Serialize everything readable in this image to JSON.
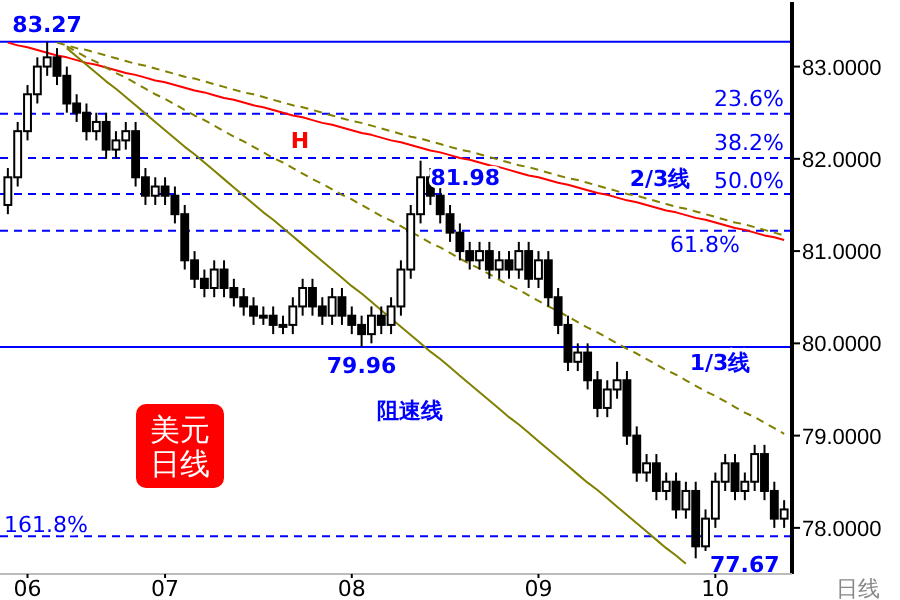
{
  "chart_data": {
    "type": "candlestick",
    "title": "美元日线",
    "xlabel": "日线",
    "categories": [
      null,
      null,
      "06",
      null,
      null,
      null,
      null,
      null,
      null,
      null,
      null,
      null,
      null,
      null,
      null,
      null,
      "07",
      null,
      null,
      null,
      null,
      null,
      null,
      null,
      null,
      null,
      null,
      null,
      null,
      null,
      null,
      null,
      null,
      null,
      null,
      "08",
      null,
      null,
      null,
      null,
      null,
      null,
      null,
      null,
      null,
      null,
      null,
      null,
      null,
      null,
      null,
      null,
      null,
      null,
      "09",
      null,
      null,
      null,
      null,
      null,
      null,
      null,
      null,
      null,
      null,
      null,
      null,
      null,
      null,
      null,
      null,
      null,
      "10",
      null,
      null,
      null,
      null,
      null,
      null,
      null
    ],
    "ohlc": [
      [
        81.5,
        81.9,
        81.4,
        81.8
      ],
      [
        81.8,
        82.4,
        81.7,
        82.3
      ],
      [
        82.3,
        82.8,
        82.2,
        82.7
      ],
      [
        82.7,
        83.1,
        82.6,
        83.0
      ],
      [
        83.0,
        83.27,
        82.9,
        83.1
      ],
      [
        83.1,
        83.2,
        82.8,
        82.9
      ],
      [
        82.9,
        83.0,
        82.5,
        82.6
      ],
      [
        82.6,
        82.7,
        82.4,
        82.5
      ],
      [
        82.5,
        82.6,
        82.2,
        82.3
      ],
      [
        82.3,
        82.5,
        82.2,
        82.4
      ],
      [
        82.4,
        82.5,
        82.0,
        82.1
      ],
      [
        82.1,
        82.3,
        82.0,
        82.2
      ],
      [
        82.2,
        82.4,
        82.1,
        82.3
      ],
      [
        82.3,
        82.4,
        81.7,
        81.8
      ],
      [
        81.8,
        81.9,
        81.5,
        81.6
      ],
      [
        81.6,
        81.8,
        81.5,
        81.7
      ],
      [
        81.7,
        81.8,
        81.5,
        81.6
      ],
      [
        81.6,
        81.7,
        81.3,
        81.4
      ],
      [
        81.4,
        81.5,
        80.8,
        80.9
      ],
      [
        80.9,
        81.0,
        80.6,
        80.7
      ],
      [
        80.7,
        80.8,
        80.5,
        80.6
      ],
      [
        80.6,
        80.9,
        80.5,
        80.8
      ],
      [
        80.8,
        80.9,
        80.5,
        80.6
      ],
      [
        80.6,
        80.7,
        80.4,
        80.5
      ],
      [
        80.5,
        80.6,
        80.3,
        80.4
      ],
      [
        80.4,
        80.5,
        80.2,
        80.3
      ],
      [
        80.3,
        80.4,
        80.2,
        80.3
      ],
      [
        80.3,
        80.4,
        80.1,
        80.2
      ],
      [
        80.2,
        80.3,
        80.1,
        80.2
      ],
      [
        80.2,
        80.5,
        80.1,
        80.4
      ],
      [
        80.4,
        80.7,
        80.3,
        80.6
      ],
      [
        80.6,
        80.7,
        80.3,
        80.4
      ],
      [
        80.4,
        80.5,
        80.2,
        80.3
      ],
      [
        80.3,
        80.6,
        80.2,
        80.5
      ],
      [
        80.5,
        80.6,
        80.2,
        80.3
      ],
      [
        80.3,
        80.4,
        80.1,
        80.2
      ],
      [
        80.2,
        80.3,
        79.96,
        80.1
      ],
      [
        80.1,
        80.4,
        80.0,
        80.3
      ],
      [
        80.3,
        80.4,
        80.1,
        80.2
      ],
      [
        80.2,
        80.5,
        80.1,
        80.4
      ],
      [
        80.4,
        80.9,
        80.3,
        80.8
      ],
      [
        80.8,
        81.5,
        80.7,
        81.4
      ],
      [
        81.4,
        81.98,
        81.3,
        81.8
      ],
      [
        81.8,
        81.9,
        81.5,
        81.6
      ],
      [
        81.6,
        81.7,
        81.3,
        81.4
      ],
      [
        81.4,
        81.5,
        81.1,
        81.2
      ],
      [
        81.2,
        81.3,
        80.9,
        81.0
      ],
      [
        81.0,
        81.1,
        80.8,
        80.9
      ],
      [
        80.9,
        81.1,
        80.8,
        81.0
      ],
      [
        81.0,
        81.1,
        80.7,
        80.8
      ],
      [
        80.8,
        81.0,
        80.7,
        80.9
      ],
      [
        80.9,
        81.0,
        80.7,
        80.8
      ],
      [
        80.8,
        81.1,
        80.7,
        81.0
      ],
      [
        81.0,
        81.1,
        80.6,
        80.7
      ],
      [
        80.7,
        81.0,
        80.6,
        80.9
      ],
      [
        80.9,
        81.0,
        80.4,
        80.5
      ],
      [
        80.5,
        80.6,
        80.1,
        80.2
      ],
      [
        80.2,
        80.3,
        79.7,
        79.8
      ],
      [
        79.8,
        80.0,
        79.7,
        79.9
      ],
      [
        79.9,
        80.0,
        79.5,
        79.6
      ],
      [
        79.6,
        79.7,
        79.2,
        79.3
      ],
      [
        79.3,
        79.6,
        79.2,
        79.5
      ],
      [
        79.5,
        79.8,
        79.4,
        79.6
      ],
      [
        79.6,
        79.7,
        78.9,
        79.0
      ],
      [
        79.0,
        79.1,
        78.5,
        78.6
      ],
      [
        78.6,
        78.8,
        78.5,
        78.7
      ],
      [
        78.7,
        78.8,
        78.3,
        78.4
      ],
      [
        78.4,
        78.6,
        78.3,
        78.5
      ],
      [
        78.5,
        78.6,
        78.1,
        78.2
      ],
      [
        78.2,
        78.5,
        78.1,
        78.4
      ],
      [
        78.4,
        78.5,
        77.67,
        77.8
      ],
      [
        77.8,
        78.2,
        77.75,
        78.1
      ],
      [
        78.1,
        78.6,
        78.0,
        78.5
      ],
      [
        78.5,
        78.8,
        78.4,
        78.7
      ],
      [
        78.7,
        78.8,
        78.3,
        78.4
      ],
      [
        78.4,
        78.6,
        78.3,
        78.5
      ],
      [
        78.5,
        78.9,
        78.4,
        78.8
      ],
      [
        78.8,
        78.9,
        78.3,
        78.4
      ],
      [
        78.4,
        78.5,
        78.0,
        78.1
      ],
      [
        78.1,
        78.3,
        78.0,
        78.2
      ]
    ],
    "series": [
      {
        "type": "line",
        "color": "#ff0000",
        "line_style": "solid",
        "values": [
          83.26,
          83.23,
          83.21,
          83.18,
          83.15,
          83.12,
          83.1,
          83.07,
          83.04,
          83.02,
          82.99,
          82.96,
          82.93,
          82.91,
          82.88,
          82.85,
          82.83,
          82.8,
          82.77,
          82.74,
          82.72,
          82.69,
          82.66,
          82.64,
          82.61,
          82.58,
          82.56,
          82.53,
          82.5,
          82.47,
          82.45,
          82.42,
          82.39,
          82.37,
          82.34,
          82.31,
          82.28,
          82.26,
          82.23,
          82.2,
          82.18,
          82.15,
          82.12,
          82.09,
          82.07,
          82.04,
          82.01,
          81.99,
          81.96,
          81.93,
          81.91,
          81.88,
          81.85,
          81.82,
          81.8,
          81.77,
          81.74,
          81.72,
          81.69,
          81.66,
          81.63,
          81.61,
          81.58,
          81.55,
          81.53,
          81.5,
          81.47,
          81.44,
          81.42,
          81.39,
          81.36,
          81.34,
          81.31,
          81.28,
          81.25,
          81.23,
          81.2,
          81.17,
          81.15,
          81.12
        ]
      },
      {
        "type": "line",
        "color": "#808000",
        "line_style": "dashed",
        "values": [
          null,
          null,
          null,
          null,
          null,
          83.26,
          83.23,
          83.2,
          83.18,
          83.15,
          83.12,
          83.09,
          83.06,
          83.03,
          83.01,
          82.98,
          82.95,
          82.92,
          82.89,
          82.87,
          82.84,
          82.81,
          82.78,
          82.75,
          82.72,
          82.7,
          82.67,
          82.64,
          82.61,
          82.58,
          82.56,
          82.53,
          82.5,
          82.47,
          82.44,
          82.41,
          82.39,
          82.36,
          82.33,
          82.3,
          82.27,
          82.24,
          82.22,
          82.19,
          82.16,
          82.13,
          82.1,
          82.08,
          82.05,
          82.02,
          81.99,
          81.96,
          81.93,
          81.91,
          81.88,
          81.85,
          81.82,
          81.79,
          81.77,
          81.74,
          81.71,
          81.68,
          81.65,
          81.62,
          81.6,
          81.57,
          81.54,
          81.51,
          81.48,
          81.46,
          81.43,
          81.4,
          81.37,
          81.34,
          81.31,
          81.29,
          81.26,
          81.23,
          81.2,
          81.17
        ]
      },
      {
        "type": "line",
        "color": "#808000",
        "line_style": "dashed",
        "values": [
          null,
          null,
          null,
          null,
          null,
          null,
          83.22,
          83.16,
          83.1,
          83.05,
          82.99,
          82.93,
          82.88,
          82.82,
          82.76,
          82.7,
          82.65,
          82.59,
          82.53,
          82.47,
          82.42,
          82.36,
          82.3,
          82.24,
          82.19,
          82.13,
          82.07,
          82.01,
          81.96,
          81.9,
          81.84,
          81.78,
          81.73,
          81.67,
          81.61,
          81.56,
          81.5,
          81.44,
          81.38,
          81.33,
          81.27,
          81.21,
          81.15,
          81.09,
          81.04,
          80.98,
          80.92,
          80.86,
          80.81,
          80.75,
          80.69,
          80.63,
          80.58,
          80.52,
          80.46,
          80.4,
          80.35,
          80.29,
          80.23,
          80.17,
          80.12,
          80.06,
          80.0,
          79.94,
          79.89,
          79.83,
          79.77,
          79.71,
          79.66,
          79.6,
          79.54,
          79.48,
          79.43,
          79.37,
          79.31,
          79.25,
          79.2,
          79.14,
          79.08,
          79.02
        ]
      },
      {
        "type": "line",
        "color": "#808000",
        "line_style": "solid",
        "values": [
          null,
          null,
          null,
          null,
          null,
          null,
          83.2,
          83.11,
          83.02,
          82.93,
          82.84,
          82.76,
          82.67,
          82.58,
          82.49,
          82.4,
          82.31,
          82.22,
          82.13,
          82.05,
          81.96,
          81.87,
          81.78,
          81.69,
          81.6,
          81.51,
          81.42,
          81.34,
          81.25,
          81.16,
          81.07,
          80.98,
          80.89,
          80.8,
          80.71,
          80.62,
          80.54,
          80.45,
          80.36,
          80.27,
          80.18,
          80.09,
          80.0,
          79.91,
          79.83,
          79.74,
          79.65,
          79.56,
          79.47,
          79.38,
          79.29,
          79.2,
          79.12,
          79.03,
          78.94,
          78.85,
          78.76,
          78.67,
          78.58,
          78.49,
          78.41,
          78.32,
          78.23,
          78.14,
          78.05,
          77.96,
          77.87,
          77.78,
          77.7,
          77.61,
          null,
          null,
          null,
          null,
          null,
          null,
          null,
          null,
          null,
          null
        ]
      }
    ],
    "ylim": [
      77.5,
      83.7
    ],
    "yticks": [
      {
        "value": 78,
        "label": "78.0000"
      },
      {
        "value": 79,
        "label": "79.0000"
      },
      {
        "value": 80,
        "label": "80.0000"
      },
      {
        "value": 81,
        "label": "81.0000"
      },
      {
        "value": 82,
        "label": "82.0000"
      },
      {
        "value": 83,
        "label": "83.0000"
      }
    ],
    "ref_lines": [
      {
        "axis": "y",
        "value": 83.27,
        "color": "#0000ff",
        "line_style": "solid"
      },
      {
        "axis": "y",
        "value": 82.49,
        "color": "#0000ff",
        "line_style": "dashed"
      },
      {
        "axis": "y",
        "value": 82.01,
        "color": "#0000ff",
        "line_style": "dashed"
      },
      {
        "axis": "y",
        "value": 81.62,
        "color": "#0000ff",
        "line_style": "dashed"
      },
      {
        "axis": "y",
        "value": 81.22,
        "color": "#0000ff",
        "line_style": "dashed"
      },
      {
        "axis": "y",
        "value": 79.96,
        "color": "#0000ff",
        "line_style": "solid"
      },
      {
        "axis": "y",
        "value": 77.91,
        "color": "#0000ff",
        "line_style": "dashed"
      }
    ],
    "annotations": [
      "23.6%",
      "38.2%",
      "50.0%",
      "61.8%",
      "161.8%",
      "H",
      "2/3线",
      "1/3线",
      "阻速线",
      "77.67",
      {
        "text": "83.27",
        "y": 83.27
      },
      {
        "text": "81.98",
        "y": 81.98
      },
      {
        "text": "79.96",
        "y": 79.96
      }
    ],
    "grid": false
  }
}
